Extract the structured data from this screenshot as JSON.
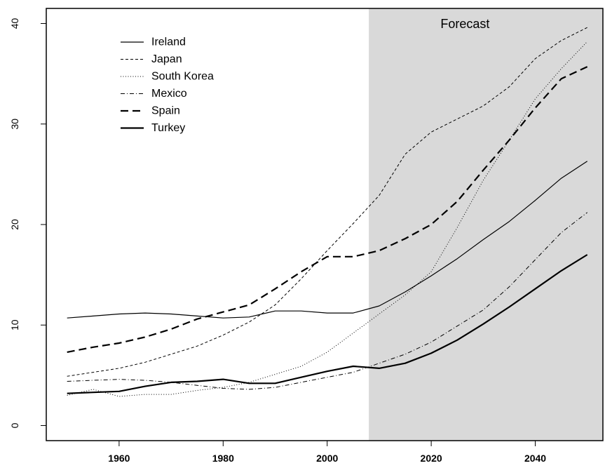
{
  "chart_data": {
    "type": "line",
    "title": "",
    "xlabel": "",
    "ylabel": "",
    "xlim": [
      1946,
      2053
    ],
    "ylim": [
      -1.5,
      41.5
    ],
    "x_ticks": [
      1960,
      1980,
      2000,
      2020,
      2040
    ],
    "x_tick_labels": [
      "1960",
      "1980",
      "2000",
      "2020",
      "2040"
    ],
    "y_ticks": [
      0,
      10,
      20,
      30,
      40
    ],
    "y_tick_labels": [
      "0",
      "10",
      "20",
      "30",
      "40"
    ],
    "grid": false,
    "legend_position": "top-left",
    "forecast_region": {
      "label": "Forecast",
      "x_start": 2008,
      "x_end": 2053,
      "color": "#d9d9d9"
    },
    "x": [
      1950,
      1955,
      1960,
      1965,
      1970,
      1975,
      1980,
      1985,
      1990,
      1995,
      2000,
      2005,
      2010,
      2015,
      2020,
      2025,
      2030,
      2035,
      2040,
      2045,
      2050
    ],
    "series": [
      {
        "name": "Ireland",
        "values": [
          10.7,
          10.9,
          11.1,
          11.2,
          11.1,
          10.9,
          10.7,
          10.8,
          11.4,
          11.4,
          11.2,
          11.2,
          11.9,
          13.3,
          14.9,
          16.6,
          18.5,
          20.3,
          22.4,
          24.6,
          26.3
        ],
        "dash": "none",
        "width": 1.2
      },
      {
        "name": "Japan",
        "values": [
          4.9,
          5.3,
          5.7,
          6.3,
          7.1,
          7.9,
          9.0,
          10.3,
          12.0,
          14.6,
          17.4,
          20.1,
          22.9,
          27.0,
          29.2,
          30.5,
          31.8,
          33.7,
          36.5,
          38.3,
          39.6
        ],
        "dash": "4,3",
        "width": 1.0
      },
      {
        "name": "South Korea",
        "values": [
          3.0,
          3.6,
          2.9,
          3.1,
          3.1,
          3.5,
          3.8,
          4.3,
          5.1,
          5.9,
          7.3,
          9.2,
          11.1,
          13.0,
          15.3,
          19.7,
          24.4,
          28.4,
          32.5,
          35.5,
          38.2
        ],
        "dash": "1,2.5",
        "width": 1.0
      },
      {
        "name": "Mexico",
        "values": [
          4.4,
          4.5,
          4.6,
          4.5,
          4.3,
          4.0,
          3.7,
          3.6,
          3.8,
          4.3,
          4.8,
          5.3,
          6.2,
          7.1,
          8.3,
          9.9,
          11.5,
          13.8,
          16.5,
          19.2,
          21.2
        ],
        "dash": "6,3,1,3",
        "width": 1.0
      },
      {
        "name": "Spain",
        "values": [
          7.3,
          7.8,
          8.2,
          8.8,
          9.6,
          10.6,
          11.3,
          12.0,
          13.6,
          15.3,
          16.8,
          16.8,
          17.4,
          18.6,
          20.0,
          22.3,
          25.4,
          28.4,
          31.6,
          34.5,
          35.7
        ],
        "dash": "11,6",
        "width": 2.2
      },
      {
        "name": "Turkey",
        "values": [
          3.2,
          3.3,
          3.4,
          3.9,
          4.3,
          4.4,
          4.6,
          4.2,
          4.2,
          4.8,
          5.4,
          5.9,
          5.7,
          6.2,
          7.2,
          8.5,
          10.1,
          11.8,
          13.6,
          15.4,
          17.0
        ],
        "dash": "none",
        "width": 2.2
      }
    ]
  }
}
